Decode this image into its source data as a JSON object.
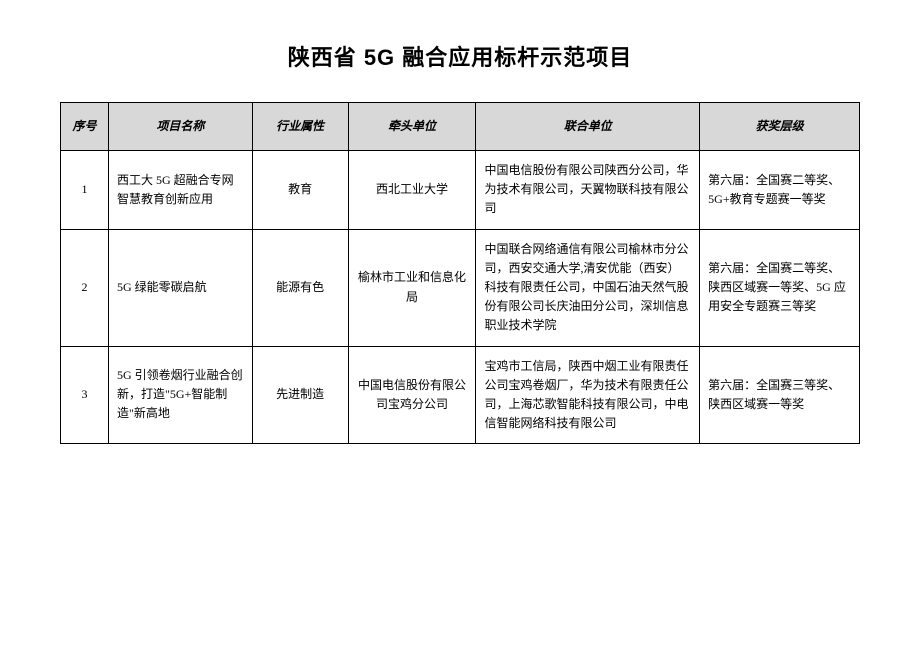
{
  "title": "陕西省 5G 融合应用标杆示范项目",
  "table": {
    "columns": [
      "序号",
      "项目名称",
      "行业属性",
      "牵头单位",
      "联合单位",
      "获奖层级"
    ],
    "rows": [
      {
        "seq": "1",
        "name": "西工大 5G 超融合专网智慧教育创新应用",
        "industry": "教育",
        "lead": "西北工业大学",
        "joint": "中国电信股份有限公司陕西分公司，华为技术有限公司，天翼物联科技有限公司",
        "award": "第六届：全国赛二等奖、5G+教育专题赛一等奖"
      },
      {
        "seq": "2",
        "name": "5G 绿能零碳启航",
        "industry": "能源有色",
        "lead": "榆林市工业和信息化局",
        "joint": "中国联合网络通信有限公司榆林市分公司，西安交通大学,清安优能（西安）科技有限责任公司，中国石油天然气股份有限公司长庆油田分公司，深圳信息职业技术学院",
        "award": "第六届：全国赛二等奖、陕西区域赛一等奖、5G 应用安全专题赛三等奖"
      },
      {
        "seq": "3",
        "name": "5G 引领卷烟行业融合创新，打造\"5G+智能制造\"新高地",
        "industry": "先进制造",
        "lead": "中国电信股份有限公司宝鸡分公司",
        "joint": "宝鸡市工信局，陕西中烟工业有限责任公司宝鸡卷烟厂，华为技术有限责任公司，上海芯歌智能科技有限公司，中电信智能网络科技有限公司",
        "award": "第六届：全国赛三等奖、陕西区域赛一等奖"
      }
    ]
  }
}
